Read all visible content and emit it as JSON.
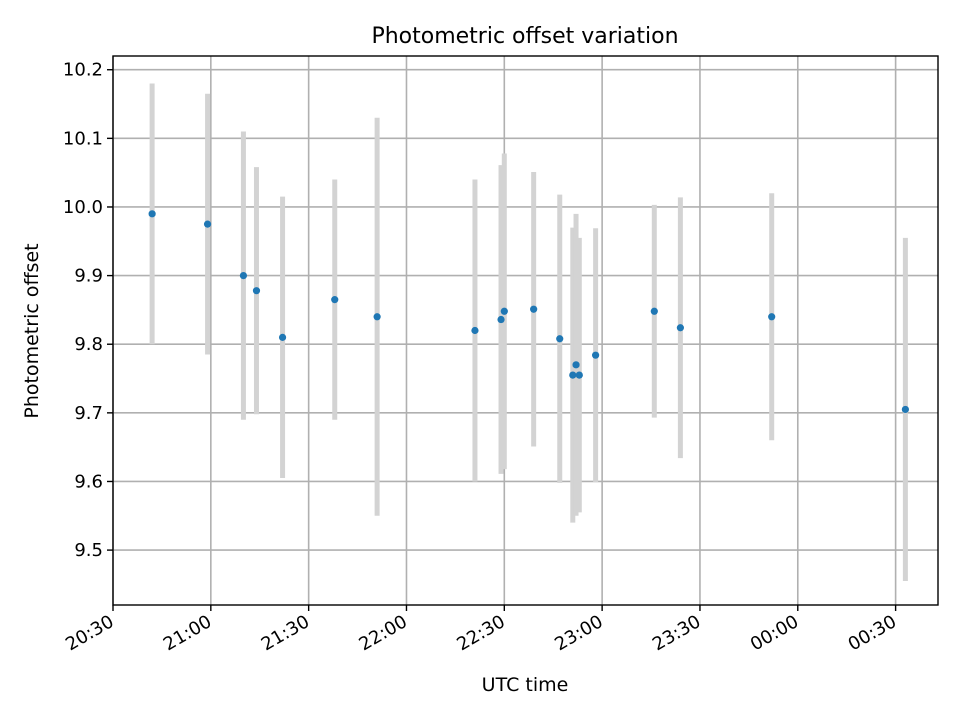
{
  "chart_data": {
    "type": "scatter",
    "title": "Photometric offset variation",
    "xlabel": "UTC time",
    "ylabel": "Photometric offset",
    "grid": true,
    "colors": {
      "point": "#1f77b4",
      "errorbar": "#d3d3d3"
    },
    "x_ticks": [
      "20:30",
      "21:00",
      "21:30",
      "22:00",
      "22:30",
      "23:00",
      "23:30",
      "00:00",
      "00:30"
    ],
    "y_ticks": [
      "9.5",
      "9.6",
      "9.7",
      "9.8",
      "9.9",
      "10.0",
      "10.1",
      "10.2"
    ],
    "xlim": [
      "20:30",
      "00:43"
    ],
    "ylim": [
      9.42,
      10.22
    ],
    "points": [
      {
        "time": "20:42",
        "y": 9.99,
        "err": 0.19
      },
      {
        "time": "20:59",
        "y": 9.975,
        "err": 0.19
      },
      {
        "time": "21:10",
        "y": 9.9,
        "err": 0.21
      },
      {
        "time": "21:14",
        "y": 9.878,
        "err": 0.18
      },
      {
        "time": "21:22",
        "y": 9.81,
        "err": 0.205
      },
      {
        "time": "21:38",
        "y": 9.865,
        "err": 0.175
      },
      {
        "time": "21:51",
        "y": 9.84,
        "err": 0.29
      },
      {
        "time": "22:21",
        "y": 9.82,
        "err": 0.22
      },
      {
        "time": "22:29",
        "y": 9.836,
        "err": 0.225
      },
      {
        "time": "22:30",
        "y": 9.848,
        "err": 0.23
      },
      {
        "time": "22:39",
        "y": 9.851,
        "err": 0.2
      },
      {
        "time": "22:47",
        "y": 9.808,
        "err": 0.21
      },
      {
        "time": "22:51",
        "y": 9.755,
        "err": 0.215
      },
      {
        "time": "22:52",
        "y": 9.77,
        "err": 0.22
      },
      {
        "time": "22:53",
        "y": 9.755,
        "err": 0.2
      },
      {
        "time": "22:58",
        "y": 9.784,
        "err": 0.185
      },
      {
        "time": "23:16",
        "y": 9.848,
        "err": 0.155
      },
      {
        "time": "23:24",
        "y": 9.824,
        "err": 0.19
      },
      {
        "time": "23:52",
        "y": 9.84,
        "err": 0.18
      },
      {
        "time": "00:33",
        "y": 9.705,
        "err": 0.25
      }
    ]
  }
}
